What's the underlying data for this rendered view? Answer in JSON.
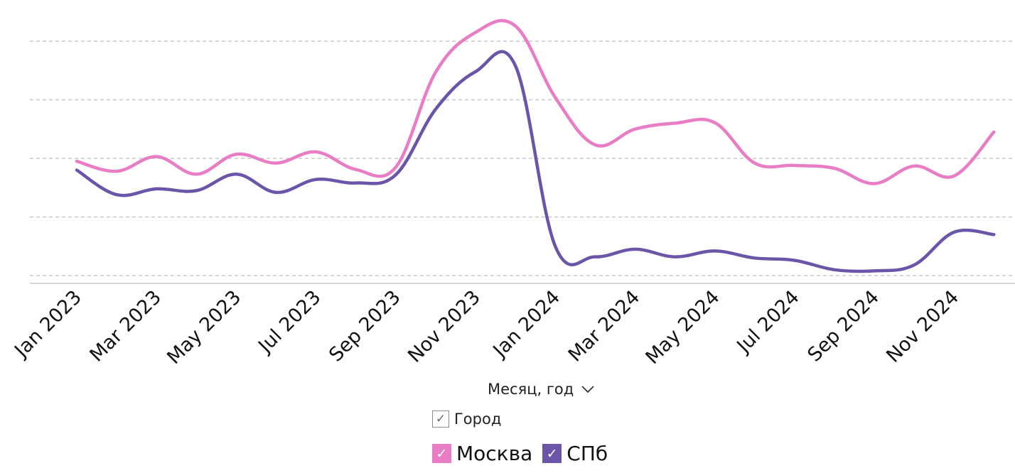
{
  "chart_data": {
    "type": "line",
    "x": [
      "2023-01",
      "2023-02",
      "2023-03",
      "2023-04",
      "2023-05",
      "2023-06",
      "2023-07",
      "2023-08",
      "2023-09",
      "2023-10",
      "2023-11",
      "2023-12",
      "2024-01",
      "2024-02",
      "2024-03",
      "2024-04",
      "2024-05",
      "2024-06",
      "2024-07",
      "2024-08",
      "2024-09",
      "2024-10",
      "2024-11",
      "2024-12"
    ],
    "xtick_labels": [
      "Jan 2023",
      "Mar 2023",
      "May 2023",
      "Jul 2023",
      "Sep 2023",
      "Nov 2023",
      "Jan 2024",
      "Mar 2024",
      "May 2024",
      "Jul 2024",
      "Sep 2024",
      "Nov 2024"
    ],
    "xlabel": "Месяц, год",
    "ylim": [
      0,
      4.2
    ],
    "yticks": [
      0,
      1,
      2,
      3,
      4
    ],
    "grid": true,
    "legend_title": "Город",
    "series": [
      {
        "name": "Москва",
        "color": "#e87dc5",
        "values": [
          1.95,
          1.78,
          2.03,
          1.73,
          2.07,
          1.92,
          2.11,
          1.81,
          1.85,
          3.47,
          4.15,
          4.26,
          3.04,
          2.23,
          2.5,
          2.6,
          2.61,
          1.92,
          1.88,
          1.83,
          1.57,
          1.87,
          1.7,
          2.45
        ]
      },
      {
        "name": "СПб",
        "color": "#6a55a8",
        "values": [
          1.8,
          1.38,
          1.48,
          1.45,
          1.73,
          1.42,
          1.64,
          1.58,
          1.72,
          2.84,
          3.48,
          3.58,
          0.5,
          0.32,
          0.45,
          0.32,
          0.42,
          0.3,
          0.26,
          0.1,
          0.08,
          0.18,
          0.74,
          0.7
        ]
      }
    ]
  },
  "legend": {
    "title": "Город",
    "check_glyph": "✓",
    "items": [
      {
        "label": "Москва"
      },
      {
        "label": "СПб"
      }
    ]
  },
  "axis": {
    "x_title": "Месяц, год"
  }
}
